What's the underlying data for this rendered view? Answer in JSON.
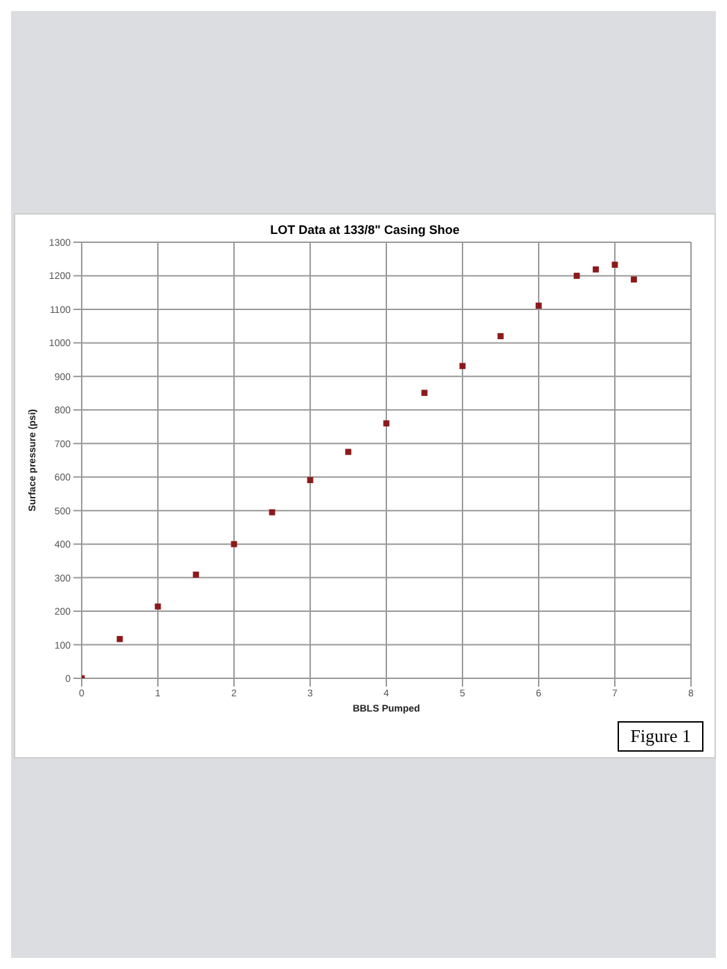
{
  "chart_data": {
    "type": "scatter",
    "title": "LOT Data at 133/8\" Casing Shoe",
    "xlabel": "BBLS Pumped",
    "ylabel": "Surface pressure (psi)",
    "x": [
      0,
      0.5,
      1,
      1.5,
      2,
      2.5,
      3,
      3.5,
      4,
      4.5,
      5,
      5.5,
      6,
      6.5,
      6.75,
      7,
      7.25
    ],
    "series": [
      {
        "color": "#8b1a1a",
        "values": [
          0,
          117,
          214,
          309,
          400,
          495,
          591,
          675,
          760,
          851,
          931,
          1020,
          1111,
          1200,
          1219,
          1233,
          1189
        ]
      }
    ],
    "xlim": [
      0,
      8
    ],
    "xticks": [
      0,
      1,
      2,
      3,
      4,
      5,
      6,
      7,
      8
    ],
    "ylim": [
      0,
      1300
    ],
    "yticks": [
      0,
      100,
      200,
      300,
      400,
      500,
      600,
      700,
      800,
      900,
      1000,
      1100,
      1200,
      1300
    ],
    "grid": true,
    "marker": "square",
    "annotations": [
      "Figure 1"
    ]
  }
}
